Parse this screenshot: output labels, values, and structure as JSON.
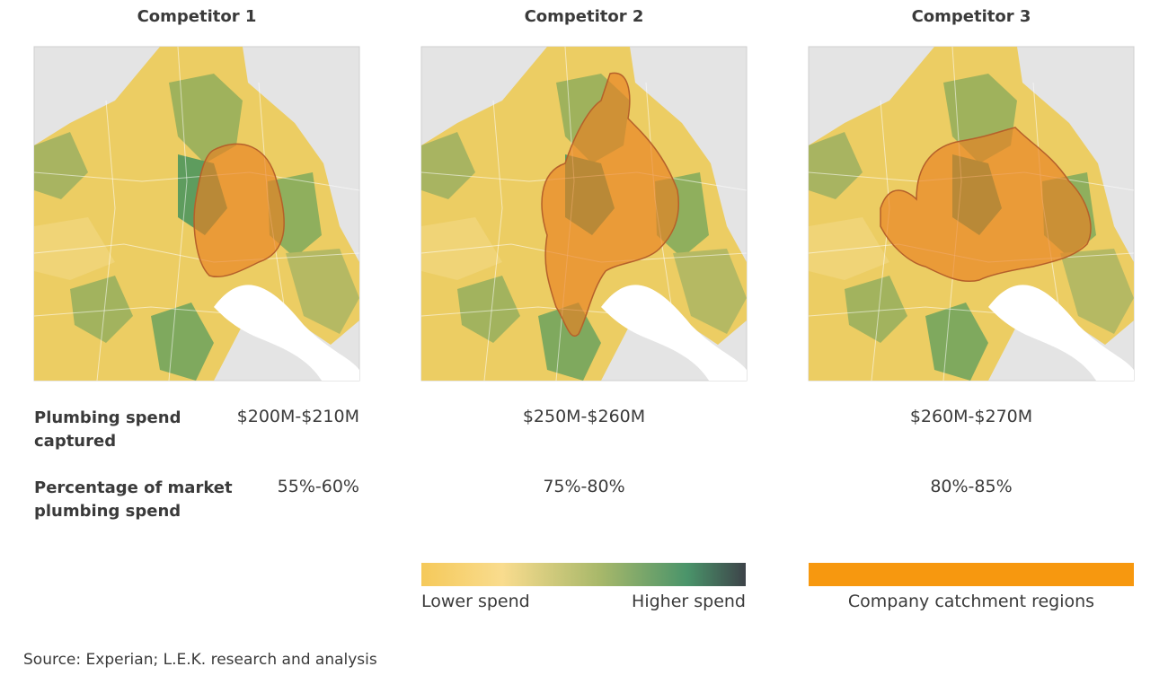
{
  "competitors": [
    {
      "title": "Competitor 1",
      "spend": "$200M-$210M",
      "share": "55%-60%"
    },
    {
      "title": "Competitor 2",
      "spend": "$250M-$260M",
      "share": "75%-80%"
    },
    {
      "title": "Competitor 3",
      "spend": "$260M-$270M",
      "share": "80%-85%"
    }
  ],
  "row_labels": {
    "spend": "Plumbing spend captured",
    "share": "Percentage of market plumbing spend"
  },
  "legend": {
    "low": "Lower spend",
    "high": "Higher spend",
    "catchment": "Company catchment regions"
  },
  "source": "Source: Experian; L.E.K. research and analysis"
}
